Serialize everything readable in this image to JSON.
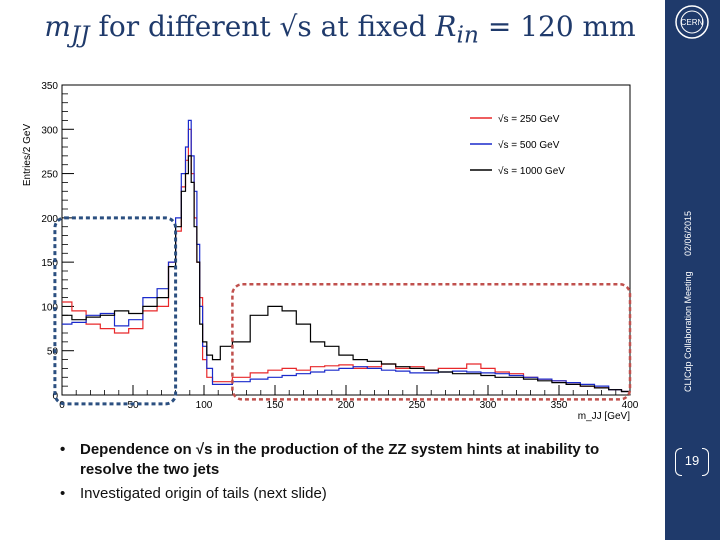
{
  "slide": {
    "title_parts": [
      "m",
      "JJ",
      " for different ",
      "√s",
      " at fixed ",
      "R",
      "in",
      " = 120 mm"
    ],
    "meeting": "CLICdp Collaboration Meeting",
    "date": "02/06/2015",
    "page_number": "19",
    "logo_text": "CERN",
    "bullets": [
      "Dependence on √s in the production of the ZZ system hints at inability to resolve the two jets",
      "Investigated origin of tails (next slide)"
    ]
  },
  "chart_data": {
    "type": "line",
    "style": "step-histogram",
    "ylabel": "Entries/2 GeV",
    "xlabel": "m_JJ [GeV]",
    "xlim": [
      0,
      400
    ],
    "ylim": [
      0,
      350
    ],
    "x_ticks": [
      "0",
      "50",
      "100",
      "150",
      "200",
      "250",
      "300",
      "350",
      "400"
    ],
    "y_ticks": [
      "0",
      "50",
      "100",
      "150",
      "200",
      "250",
      "300",
      "350"
    ],
    "legend_position": "top-right",
    "x": [
      2,
      12,
      22,
      32,
      42,
      52,
      62,
      72,
      78,
      82,
      86,
      88,
      90,
      92,
      94,
      96,
      98,
      100,
      104,
      108,
      115,
      125,
      140,
      150,
      160,
      170,
      180,
      190,
      200,
      210,
      220,
      230,
      240,
      250,
      260,
      270,
      280,
      290,
      300,
      310,
      320,
      330,
      340,
      350,
      360,
      370,
      380,
      390,
      398
    ],
    "series": [
      {
        "name": "√s = 250 GeV",
        "color": "#e8282a",
        "values": [
          105,
          95,
          80,
          75,
          70,
          75,
          95,
          100,
          150,
          185,
          235,
          265,
          300,
          250,
          200,
          150,
          110,
          40,
          20,
          15,
          15,
          20,
          25,
          28,
          30,
          28,
          32,
          33,
          34,
          30,
          32,
          35,
          30,
          32,
          28,
          30,
          30,
          35,
          30,
          26,
          24,
          20,
          18,
          16,
          12,
          10,
          8,
          6,
          4
        ]
      },
      {
        "name": "√s = 500 GeV",
        "color": "#1a2acb",
        "values": [
          80,
          82,
          90,
          92,
          78,
          85,
          110,
          120,
          150,
          200,
          250,
          280,
          310,
          270,
          230,
          170,
          100,
          55,
          30,
          12,
          12,
          15,
          18,
          20,
          22,
          24,
          26,
          28,
          30,
          32,
          30,
          28,
          27,
          25,
          25,
          26,
          27,
          26,
          25,
          24,
          22,
          20,
          18,
          16,
          14,
          12,
          10,
          6,
          4
        ]
      },
      {
        "name": "√s = 1000 GeV",
        "color": "#000000",
        "values": [
          90,
          85,
          88,
          90,
          95,
          92,
          100,
          110,
          145,
          190,
          230,
          250,
          270,
          240,
          190,
          150,
          80,
          60,
          45,
          40,
          55,
          60,
          90,
          100,
          95,
          80,
          60,
          55,
          45,
          40,
          38,
          35,
          32,
          30,
          28,
          26,
          24,
          24,
          22,
          20,
          20,
          18,
          16,
          14,
          12,
          10,
          8,
          6,
          4
        ]
      }
    ],
    "annotations": [
      "dashed box around low-mass region",
      "dashed box around high-mass tail"
    ]
  }
}
